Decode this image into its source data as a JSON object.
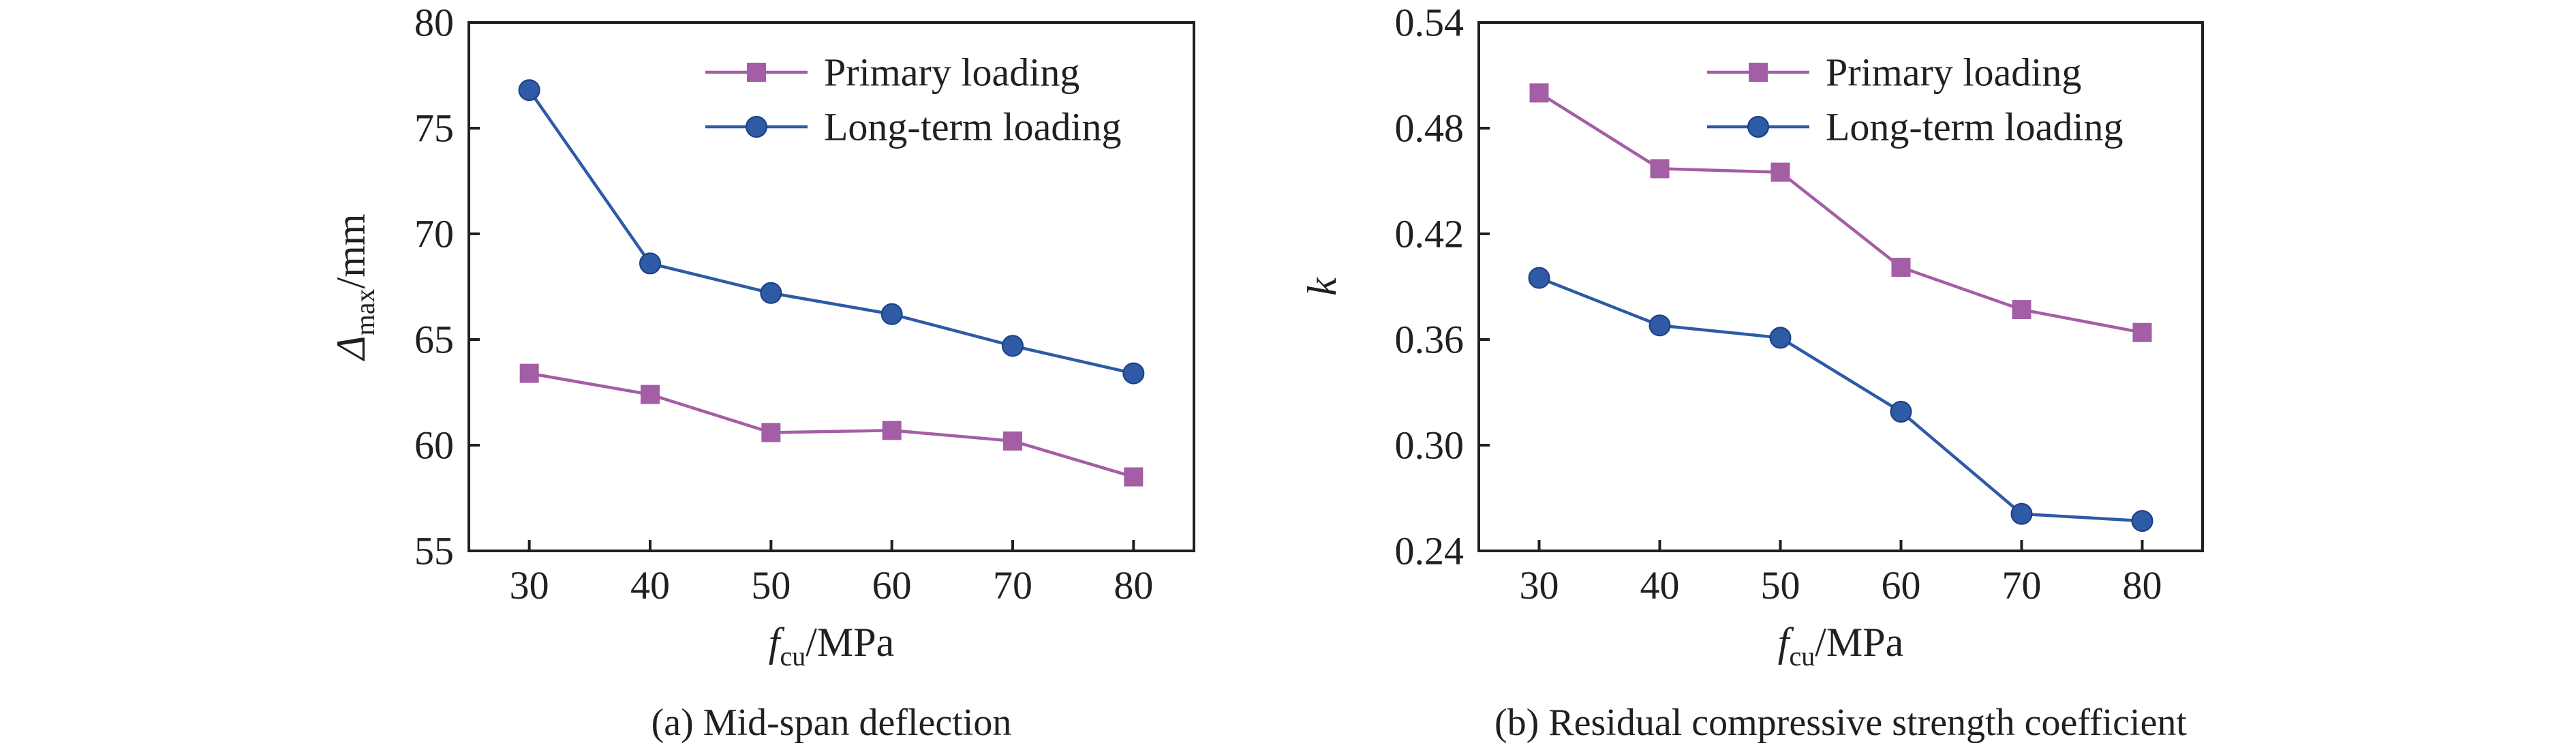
{
  "chart_data": [
    {
      "type": "line",
      "caption": "(a) Mid-span deflection",
      "xlabel": {
        "main": "f",
        "sub": "cu",
        "suffix": "/MPa"
      },
      "ylabel": {
        "main": "Δ",
        "sub": "max",
        "suffix": "/mm"
      },
      "x": [
        30,
        40,
        50,
        60,
        70,
        80
      ],
      "x_ticks": [
        "30",
        "40",
        "50",
        "60",
        "70",
        "80"
      ],
      "xlim": [
        25,
        85
      ],
      "ylim": [
        55,
        80
      ],
      "y_ticks": [
        "55",
        "60",
        "65",
        "70",
        "75",
        "80"
      ],
      "y_tick_values": [
        55,
        60,
        65,
        70,
        75,
        80
      ],
      "grid": false,
      "legend_position": "top-right",
      "series": [
        {
          "name": "Primary loading",
          "marker": "square",
          "color": "#a45ea5",
          "values": [
            63.4,
            62.4,
            60.6,
            60.7,
            60.2,
            58.5
          ]
        },
        {
          "name": "Long-term loading",
          "marker": "circle",
          "color": "#2e5aa6",
          "values": [
            76.8,
            68.6,
            67.2,
            66.2,
            64.7,
            63.4
          ]
        }
      ]
    },
    {
      "type": "line",
      "caption": "(b) Residual compressive strength coefficient",
      "xlabel": {
        "main": "f",
        "sub": "cu",
        "suffix": "/MPa"
      },
      "ylabel": {
        "main": "k",
        "sub": "",
        "suffix": ""
      },
      "x": [
        30,
        40,
        50,
        60,
        70,
        80
      ],
      "x_ticks": [
        "30",
        "40",
        "50",
        "60",
        "70",
        "80"
      ],
      "xlim": [
        25,
        85
      ],
      "ylim": [
        0.24,
        0.54
      ],
      "y_ticks": [
        "0.24",
        "0.30",
        "0.36",
        "0.42",
        "0.48",
        "0.54"
      ],
      "y_tick_values": [
        0.24,
        0.3,
        0.36,
        0.42,
        0.48,
        0.54
      ],
      "grid": false,
      "legend_position": "top-right",
      "series": [
        {
          "name": "Primary loading",
          "marker": "square",
          "color": "#a45ea5",
          "values": [
            0.5,
            0.457,
            0.455,
            0.401,
            0.377,
            0.364
          ]
        },
        {
          "name": "Long-term loading",
          "marker": "circle",
          "color": "#2e5aa6",
          "values": [
            0.395,
            0.368,
            0.361,
            0.319,
            0.261,
            0.257
          ]
        }
      ]
    }
  ]
}
